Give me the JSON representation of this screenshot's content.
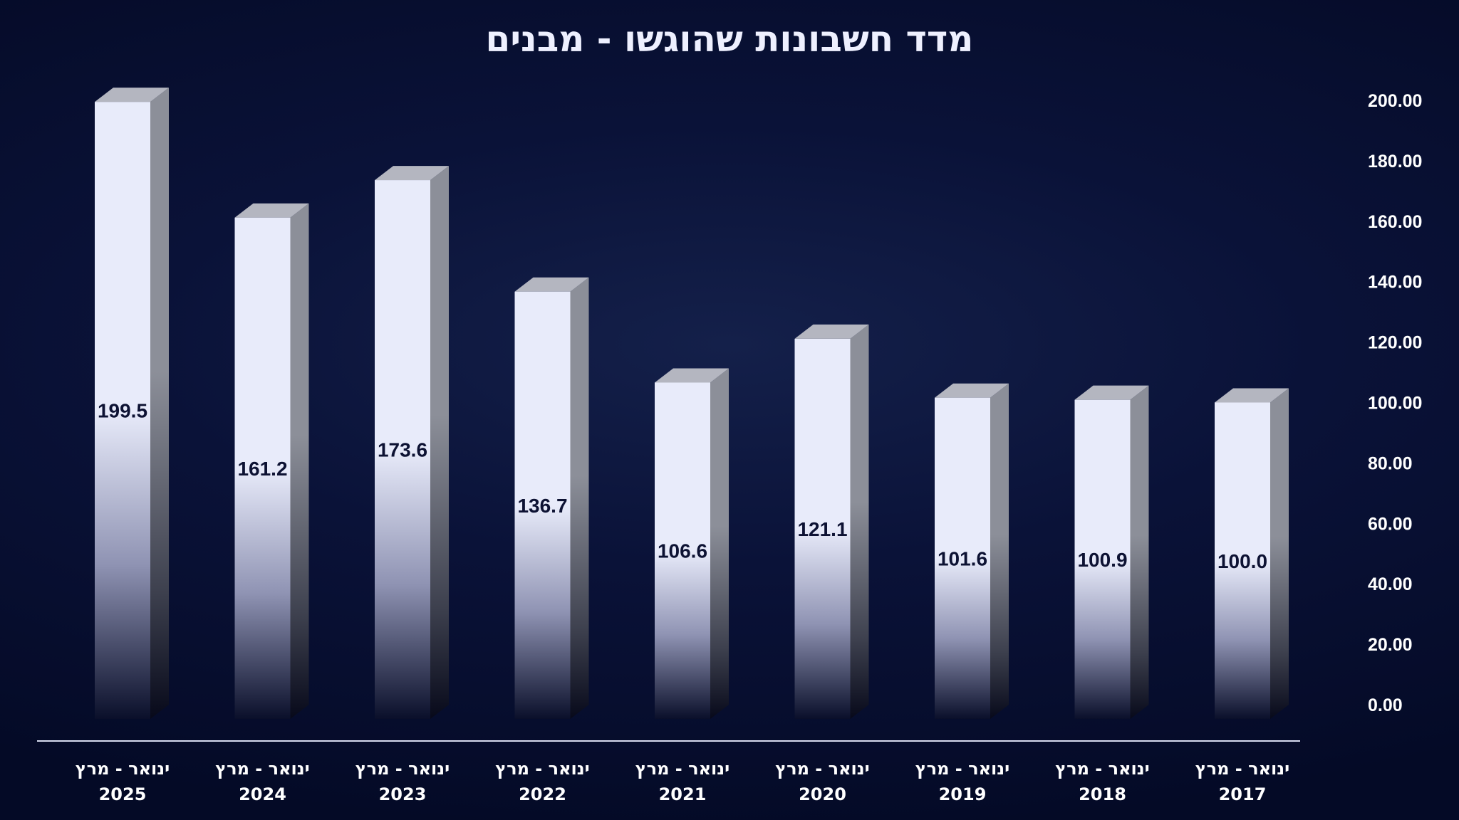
{
  "chart_data": {
    "type": "bar",
    "title": "מדד חשבונות שהוגשו - מבנים",
    "categories": [
      [
        "ינואר - מרץ",
        "2025"
      ],
      [
        "ינואר - מרץ",
        "2024"
      ],
      [
        "ינואר - מרץ",
        "2023"
      ],
      [
        "ינואר - מרץ",
        "2022"
      ],
      [
        "ינואר - מרץ",
        "2021"
      ],
      [
        "ינואר - מרץ",
        "2020"
      ],
      [
        "ינואר - מרץ",
        "2019"
      ],
      [
        "ינואר - מרץ",
        "2018"
      ],
      [
        "ינואר - מרץ",
        "2017"
      ]
    ],
    "values": [
      199.5,
      161.2,
      173.6,
      136.7,
      106.6,
      121.1,
      101.6,
      100.9,
      100.0
    ],
    "data_labels": [
      "199.5",
      "161.2",
      "173.6",
      "136.7",
      "106.6",
      "121.1",
      "101.6",
      "100.9",
      "100.0"
    ],
    "ylim": [
      0,
      200
    ],
    "y_ticks": [
      "0.00",
      "20.00",
      "40.00",
      "60.00",
      "80.00",
      "100.00",
      "120.00",
      "140.00",
      "160.00",
      "180.00",
      "200.00"
    ],
    "y_axis_side": "right",
    "legend": "none",
    "grid": false,
    "colors": {
      "bar_front": "#e8ebfa",
      "bar_side": "#8c8f99",
      "bar_top": "#b4b6c0",
      "axis_line": "#d8dcf0"
    }
  }
}
